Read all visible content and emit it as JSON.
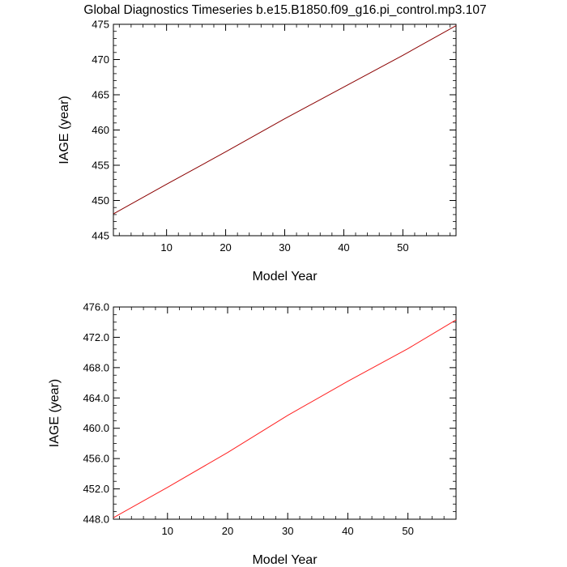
{
  "figure": {
    "title": "Global Diagnostics Timeseries b.e15.B1850.f09_g16.pi_control.mp3.107"
  },
  "chart_data": [
    {
      "type": "line",
      "title": "Global Diagnostics Timeseries b.e15.B1850.f09_g16.pi_control.mp3.107",
      "xlabel": "Model Year",
      "ylabel": "IAGE (year)",
      "xlim": [
        1,
        59
      ],
      "ylim": [
        445,
        475
      ],
      "x_ticks": [
        10,
        20,
        30,
        40,
        50
      ],
      "y_ticks": [
        445,
        450,
        455,
        460,
        465,
        470,
        475
      ],
      "y_tick_labels": [
        "445",
        "450",
        "455",
        "460",
        "465",
        "470",
        "475"
      ],
      "x_minor_step": 2,
      "y_minor_step": 1,
      "grid": false,
      "series": [
        {
          "color": "#8b0000",
          "x": [
            1,
            10,
            20,
            30,
            40,
            50,
            59
          ],
          "y": [
            448.1,
            452.3,
            456.9,
            461.6,
            466.1,
            470.6,
            474.8
          ]
        }
      ]
    },
    {
      "type": "line",
      "title": "",
      "xlabel": "Model Year",
      "ylabel": "IAGE (year)",
      "xlim": [
        1,
        58
      ],
      "ylim": [
        448,
        476
      ],
      "x_ticks": [
        10,
        20,
        30,
        40,
        50
      ],
      "y_ticks": [
        448,
        452,
        456,
        460,
        464,
        468,
        472,
        476
      ],
      "y_tick_labels": [
        "448.0",
        "452.0",
        "456.0",
        "460.0",
        "464.0",
        "468.0",
        "472.0",
        "476.0"
      ],
      "x_minor_step": 2,
      "y_minor_step": 1,
      "grid": false,
      "series": [
        {
          "color": "#ff2020",
          "x": [
            1,
            10,
            20,
            30,
            40,
            50,
            58
          ],
          "y": [
            448.2,
            452.2,
            456.8,
            461.7,
            466.2,
            470.5,
            474.3
          ]
        }
      ]
    }
  ]
}
